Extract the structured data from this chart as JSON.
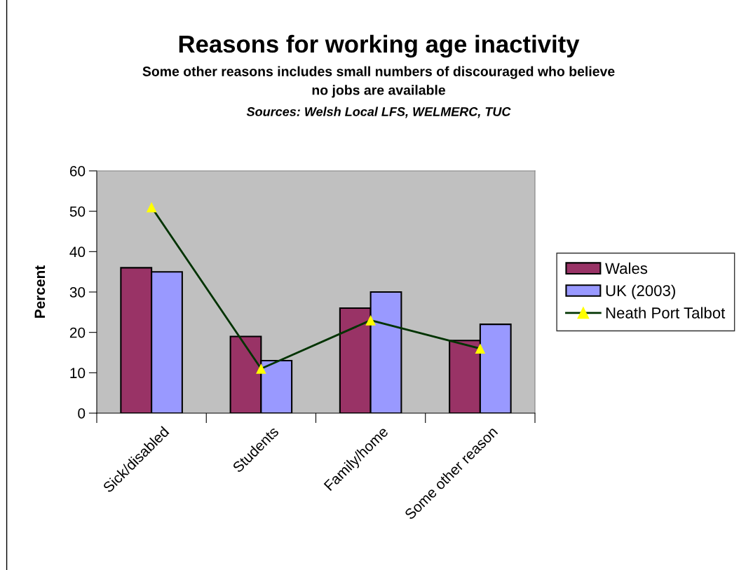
{
  "chart_data": {
    "type": "bar",
    "title": "Reasons for working age inactivity",
    "subtitle": "Some other reasons includes small numbers of discouraged who believe\nno jobs are available",
    "annotations": [
      "Sources: Welsh Local LFS, WELMERC, TUC"
    ],
    "ylabel": "Percent",
    "categories": [
      "Sick/disabled",
      "Students",
      "Family/home",
      "Some other reason"
    ],
    "series": [
      {
        "name": "Wales",
        "color": "#993366",
        "values": [
          36,
          19,
          26,
          18
        ]
      },
      {
        "name": "UK (2003)",
        "color": "#9999ff",
        "values": [
          35,
          13,
          30,
          22
        ]
      },
      {
        "name": "Neath Port Talbot",
        "type": "line",
        "color": "#003300",
        "marker": "triangle",
        "colors": [
          "#ffff00",
          "#ffff00",
          "#ffff00",
          "#ffff00"
        ],
        "values": [
          51,
          11,
          23,
          16
        ]
      }
    ],
    "ylim": [
      0,
      60
    ],
    "yticks": [
      0,
      10,
      20,
      30,
      40,
      50,
      60
    ],
    "grid": false,
    "legend": "right"
  }
}
